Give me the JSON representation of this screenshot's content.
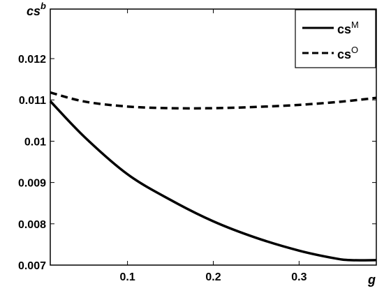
{
  "chart_data": {
    "type": "line",
    "xlabel": "g",
    "ylabel": "cs",
    "ylabel_superscript": "b",
    "xlim": [
      0.01,
      0.39
    ],
    "ylim": [
      0.007,
      0.0132
    ],
    "x_ticks": [
      0.1,
      0.2,
      0.3
    ],
    "x_tick_labels": [
      "0.1",
      "0.2",
      "0.3"
    ],
    "y_ticks": [
      0.007,
      0.008,
      0.009,
      0.01,
      0.011,
      0.012
    ],
    "y_tick_labels": [
      "0.007",
      "0.008",
      "0.009",
      "0.01",
      "0.011",
      "0.012"
    ],
    "grid": false,
    "legend_position": "top-right",
    "series": [
      {
        "name": "cs",
        "name_superscript": "M",
        "style": "solid",
        "color": "#000000",
        "x": [
          0.01,
          0.05,
          0.1,
          0.15,
          0.2,
          0.25,
          0.3,
          0.34,
          0.36,
          0.39
        ],
        "y": [
          0.01097,
          0.0101,
          0.0092,
          0.00858,
          0.00806,
          0.00766,
          0.00735,
          0.00717,
          0.00712,
          0.00712
        ]
      },
      {
        "name": "cs",
        "name_superscript": "O",
        "style": "dashed",
        "color": "#000000",
        "x": [
          0.01,
          0.05,
          0.1,
          0.15,
          0.2,
          0.25,
          0.3,
          0.35,
          0.39
        ],
        "y": [
          0.01118,
          0.01096,
          0.01084,
          0.0108,
          0.0108,
          0.01083,
          0.01088,
          0.01096,
          0.01105
        ]
      }
    ]
  }
}
